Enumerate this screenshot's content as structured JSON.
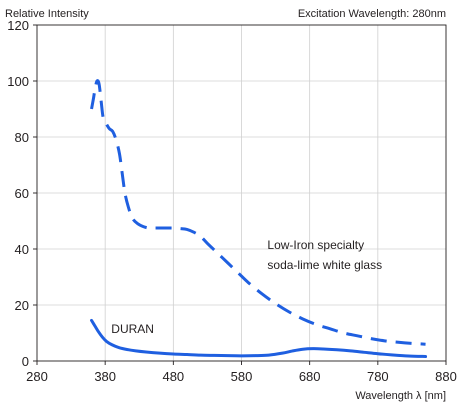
{
  "chart_data": {
    "type": "line",
    "title": "",
    "ylabel": "Relative Intensity",
    "condition_label": "Excitation Wavelength: 280nm",
    "xlabel": "Wavelength λ [nm]",
    "xlim": [
      280,
      880
    ],
    "ylim": [
      0,
      120
    ],
    "xticks": [
      280,
      380,
      480,
      580,
      680,
      780,
      880
    ],
    "yticks": [
      0,
      20,
      40,
      60,
      80,
      100,
      120
    ],
    "grid": true,
    "series": [
      {
        "name": "Low-Iron specialty soda-lime white glass",
        "name_lines": [
          "Low-Iron specialty",
          "soda-lime white glass"
        ],
        "label_anchor": [
          618,
          40
        ],
        "style": "dashed",
        "color": "#1f5fe0",
        "x": [
          360,
          363,
          365,
          368,
          371,
          374,
          377,
          381,
          386,
          391,
          396,
          401,
          405,
          409,
          414,
          420,
          428,
          436,
          444,
          452,
          460,
          470,
          480,
          490,
          500,
          510,
          520,
          530,
          545,
          560,
          575,
          590,
          610,
          630,
          650,
          670,
          690,
          710,
          730,
          750,
          770,
          790,
          810,
          830,
          850
        ],
        "y": [
          90,
          94,
          97,
          100,
          99,
          93,
          87,
          85,
          83,
          82,
          79,
          74,
          67,
          60,
          55,
          51,
          49,
          48,
          47.5,
          47.5,
          47.5,
          47.5,
          47.5,
          47.3,
          47,
          46,
          44.5,
          42,
          38.5,
          35,
          31.5,
          28,
          24,
          20.5,
          17.5,
          15,
          13,
          11.5,
          10,
          9,
          8,
          7.2,
          6.7,
          6.3,
          6
        ]
      },
      {
        "name": "DURAN",
        "name_lines": [
          "DURAN"
        ],
        "label_anchor": [
          389,
          10
        ],
        "style": "solid",
        "color": "#1f5fe0",
        "x": [
          360,
          365,
          370,
          376,
          382,
          390,
          400,
          412,
          425,
          440,
          460,
          480,
          500,
          520,
          540,
          560,
          580,
          600,
          620,
          640,
          655,
          670,
          685,
          700,
          720,
          740,
          760,
          780,
          800,
          825,
          850
        ],
        "y": [
          14.5,
          12.5,
          10.5,
          8.5,
          7,
          5.8,
          4.8,
          4.1,
          3.6,
          3.2,
          2.8,
          2.5,
          2.3,
          2.1,
          2,
          1.9,
          1.85,
          1.9,
          2.1,
          2.8,
          3.6,
          4.2,
          4.4,
          4.3,
          4,
          3.6,
          3.1,
          2.6,
          2.2,
          1.8,
          1.6
        ]
      }
    ]
  }
}
